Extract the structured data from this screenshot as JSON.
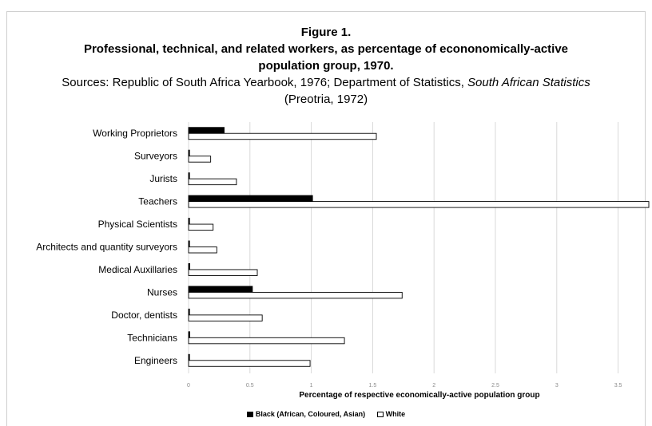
{
  "chart_data": {
    "type": "bar",
    "orientation": "horizontal",
    "title": "Figure 1.",
    "subtitle": "Professional, technical, and related workers, as percentage of econonomically-active population group, 1970.",
    "source_prefix": "Sources: Republic of South Africa Yearbook, 1976; Department of Statistics, ",
    "source_italic": "South African Statistics",
    "source_suffix": " (Preotria, 1972)",
    "xlabel": "Percentage of respective economically-active population group",
    "xlim": [
      0,
      3.75
    ],
    "xticks": [
      0,
      0.5,
      1,
      1.5,
      2,
      2.5,
      3,
      3.5
    ],
    "xtick_labels": [
      "0",
      "0.5",
      "1",
      "1.5",
      "2",
      "2.5",
      "3",
      "3.5"
    ],
    "grid": true,
    "legend_position": "bottom",
    "categories": [
      "Working Proprietors",
      "Surveyors",
      "Jurists",
      "Teachers",
      "Physical Scientists",
      "Architects and quantity surveyors",
      "Medical Auxillaries",
      "Nurses",
      "Doctor, dentists",
      "Technicians",
      "Engineers"
    ],
    "series": [
      {
        "name": "Black (African, Coloured, Asian)",
        "color": "#000000",
        "values": [
          0.29,
          0.0,
          0.0,
          1.01,
          0.0,
          0.0,
          0.01,
          0.52,
          0.0,
          0.01,
          0.0
        ]
      },
      {
        "name": "White",
        "color": "#ffffff",
        "values": [
          1.53,
          0.18,
          0.39,
          3.75,
          0.2,
          0.23,
          0.56,
          1.74,
          0.6,
          1.27,
          0.99
        ]
      }
    ]
  }
}
